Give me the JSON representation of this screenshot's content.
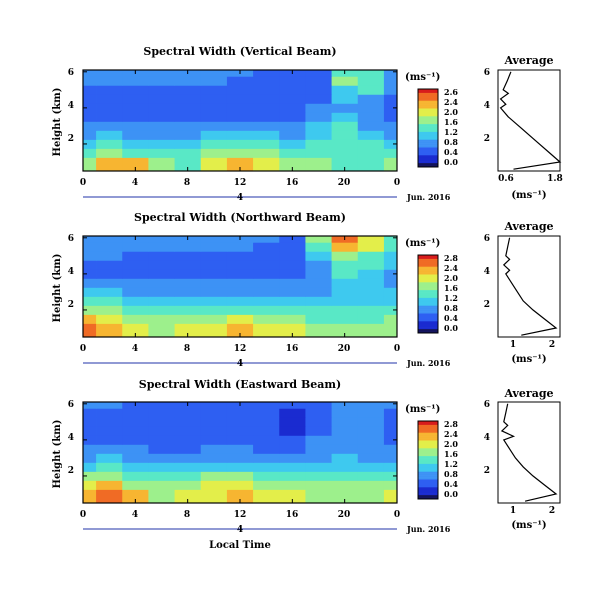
{
  "figure": {
    "xlabel": "Local Time",
    "date_label": "Jun. 2016",
    "unit_label": "(ms⁻¹)",
    "avg_xlabel": "(ms⁻¹)"
  },
  "colorscale": [
    "#12125c",
    "#1a2bd0",
    "#2e5ff2",
    "#3d92f5",
    "#3ec9ef",
    "#59e8c6",
    "#9df08c",
    "#e3ee4a",
    "#f7b531",
    "#f06b25",
    "#d81c1c"
  ],
  "panels": [
    {
      "title": "Spectral Width (Vertical Beam)",
      "ylabel": "Height (km)",
      "x_ticks": [
        "0",
        "4",
        "8",
        "12",
        "16",
        "20",
        "0"
      ],
      "y_ticks": [
        "6",
        "4",
        "2"
      ],
      "day_label": "4",
      "cbar_ticks": [
        "2.6",
        "2.4",
        "2.0",
        "1.6",
        "1.2",
        "0.8",
        "0.4",
        "0.0"
      ],
      "avg_title": "Average",
      "avg_xticks": [
        "0.6",
        "1.8"
      ],
      "avg_yticks": [
        "6",
        "4",
        "2"
      ]
    },
    {
      "title": "Spectral Width (Northward Beam)",
      "ylabel": "Height (km)",
      "x_ticks": [
        "0",
        "4",
        "8",
        "12",
        "16",
        "20",
        "0"
      ],
      "y_ticks": [
        "6",
        "4",
        "2"
      ],
      "day_label": "4",
      "cbar_ticks": [
        "2.8",
        "2.4",
        "2.0",
        "1.6",
        "1.2",
        "0.8",
        "0.4",
        "0.0"
      ],
      "avg_title": "Average",
      "avg_xticks": [
        "1",
        "2"
      ],
      "avg_yticks": [
        "6",
        "4",
        "2"
      ]
    },
    {
      "title": "Spectral Width (Eastward Beam)",
      "ylabel": "Height (km)",
      "x_ticks": [
        "0",
        "4",
        "8",
        "12",
        "16",
        "20",
        "0"
      ],
      "y_ticks": [
        "6",
        "4",
        "2"
      ],
      "day_label": "4",
      "cbar_ticks": [
        "2.8",
        "2.4",
        "2.0",
        "1.6",
        "1.2",
        "0.8",
        "0.4",
        "0.0"
      ],
      "avg_title": "Average",
      "avg_xticks": [
        "1",
        "2"
      ],
      "avg_yticks": [
        "6",
        "4",
        "2"
      ]
    }
  ],
  "chart_data": [
    {
      "type": "heatmap",
      "title": "Spectral Width (Vertical Beam)",
      "xlabel": "Local Time",
      "ylabel": "Height (km)",
      "xlim": [
        0,
        24
      ],
      "ylim": [
        0.5,
        6.1
      ],
      "clim": [
        0.0,
        2.6
      ],
      "x_ticks": [
        0,
        4,
        8,
        12,
        16,
        20,
        24
      ],
      "y_ticks": [
        2,
        4,
        6
      ],
      "colorbar_ticks": [
        0.0,
        0.4,
        0.8,
        1.2,
        1.6,
        2.0,
        2.4,
        2.6
      ],
      "heights_km": [
        1.0,
        1.5,
        2.0,
        2.5,
        3.0,
        3.5,
        4.0,
        4.5,
        5.0,
        5.5,
        6.0
      ],
      "times_h": [
        0,
        2,
        4,
        6,
        8,
        10,
        12,
        14,
        16,
        18,
        20,
        22,
        24
      ],
      "values": [
        [
          1.6,
          2.2,
          2.0,
          1.5,
          1.4,
          1.8,
          2.0,
          1.7,
          1.6,
          1.5,
          1.4,
          1.4,
          1.5
        ],
        [
          1.4,
          1.6,
          1.4,
          1.2,
          1.3,
          1.5,
          1.6,
          1.5,
          1.4,
          1.3,
          1.3,
          1.4,
          1.4
        ],
        [
          1.1,
          1.2,
          1.1,
          1.0,
          1.1,
          1.2,
          1.3,
          1.2,
          1.1,
          1.2,
          1.3,
          1.2,
          1.1
        ],
        [
          0.9,
          1.0,
          0.9,
          0.8,
          0.9,
          1.0,
          1.0,
          1.0,
          0.9,
          1.1,
          1.4,
          1.1,
          0.9
        ],
        [
          0.7,
          0.8,
          0.7,
          0.7,
          0.7,
          0.8,
          0.8,
          0.8,
          0.8,
          1.0,
          1.2,
          0.9,
          0.8
        ],
        [
          0.6,
          0.6,
          0.6,
          0.6,
          0.6,
          0.6,
          0.6,
          0.6,
          0.6,
          0.8,
          1.0,
          0.8,
          0.6
        ],
        [
          0.4,
          0.4,
          0.4,
          0.4,
          0.5,
          0.5,
          0.5,
          0.5,
          0.5,
          0.7,
          0.9,
          0.7,
          0.5
        ],
        [
          0.5,
          0.5,
          0.5,
          0.5,
          0.5,
          0.5,
          0.5,
          0.5,
          0.4,
          0.6,
          1.0,
          0.8,
          0.6
        ],
        [
          0.6,
          0.6,
          0.6,
          0.6,
          0.6,
          0.6,
          0.6,
          0.5,
          0.4,
          0.6,
          1.1,
          1.2,
          0.8
        ],
        [
          0.7,
          0.7,
          0.7,
          0.7,
          0.7,
          0.7,
          0.6,
          0.6,
          0.5,
          0.5,
          1.6,
          1.3,
          0.8
        ],
        [
          0.7,
          0.8,
          0.7,
          0.7,
          0.7,
          0.7,
          0.7,
          0.6,
          0.5,
          0.5,
          1.4,
          1.2,
          0.8
        ]
      ],
      "average_profile": {
        "height_km": [
          0.6,
          1.0,
          1.5,
          2.0,
          2.5,
          3.0,
          3.5,
          4.0,
          4.2,
          4.5,
          4.8,
          5.0,
          5.5,
          6.0
        ],
        "value": [
          0.9,
          1.8,
          1.6,
          1.4,
          1.2,
          1.0,
          0.8,
          0.65,
          0.75,
          0.65,
          0.8,
          0.7,
          0.78,
          0.85
        ],
        "xlim": [
          0.6,
          1.8
        ]
      }
    },
    {
      "type": "heatmap",
      "title": "Spectral Width (Northward Beam)",
      "xlabel": "Local Time",
      "ylabel": "Height (km)",
      "xlim": [
        0,
        24
      ],
      "ylim": [
        0.5,
        6.1
      ],
      "clim": [
        0.0,
        2.8
      ],
      "x_ticks": [
        0,
        4,
        8,
        12,
        16,
        20,
        24
      ],
      "y_ticks": [
        2,
        4,
        6
      ],
      "colorbar_ticks": [
        0.0,
        0.4,
        0.8,
        1.2,
        1.6,
        2.0,
        2.4,
        2.8
      ],
      "heights_km": [
        1.0,
        1.5,
        2.0,
        2.5,
        3.0,
        3.5,
        4.0,
        4.5,
        5.0,
        5.5,
        6.0
      ],
      "times_h": [
        0,
        2,
        4,
        6,
        8,
        10,
        12,
        14,
        16,
        18,
        20,
        22,
        24
      ],
      "values": [
        [
          2.4,
          2.2,
          1.9,
          1.8,
          1.9,
          2.0,
          2.1,
          1.9,
          2.0,
          1.7,
          1.6,
          1.7,
          1.8
        ],
        [
          2.1,
          1.9,
          1.7,
          1.6,
          1.7,
          1.8,
          1.9,
          1.7,
          1.6,
          1.5,
          1.4,
          1.5,
          1.6
        ],
        [
          1.7,
          1.6,
          1.4,
          1.3,
          1.4,
          1.5,
          1.5,
          1.4,
          1.3,
          1.3,
          1.3,
          1.3,
          1.4
        ],
        [
          1.3,
          1.3,
          1.2,
          1.1,
          1.1,
          1.2,
          1.2,
          1.1,
          1.1,
          1.1,
          1.2,
          1.1,
          1.2
        ],
        [
          1.0,
          1.0,
          0.9,
          0.9,
          0.9,
          0.9,
          0.9,
          0.9,
          0.9,
          0.9,
          1.1,
          1.0,
          1.0
        ],
        [
          0.7,
          0.8,
          0.7,
          0.7,
          0.7,
          0.7,
          0.7,
          0.7,
          0.7,
          0.9,
          1.2,
          1.1,
          0.9
        ],
        [
          0.6,
          0.6,
          0.6,
          0.6,
          0.6,
          0.6,
          0.6,
          0.6,
          0.6,
          0.8,
          1.4,
          1.2,
          0.9
        ],
        [
          0.6,
          0.6,
          0.6,
          0.6,
          0.6,
          0.6,
          0.6,
          0.6,
          0.5,
          0.8,
          1.3,
          1.3,
          1.0
        ],
        [
          0.7,
          0.7,
          0.6,
          0.6,
          0.6,
          0.6,
          0.6,
          0.6,
          0.5,
          1.0,
          1.6,
          1.5,
          1.1
        ],
        [
          0.8,
          0.8,
          0.7,
          0.7,
          0.7,
          0.7,
          0.7,
          0.6,
          0.5,
          1.4,
          2.2,
          1.9,
          1.3
        ],
        [
          0.8,
          0.8,
          0.8,
          0.8,
          0.8,
          0.8,
          0.8,
          0.7,
          0.6,
          1.8,
          2.4,
          2.0,
          1.3
        ]
      ],
      "average_profile": {
        "height_km": [
          0.6,
          1.0,
          1.5,
          2.0,
          2.5,
          3.0,
          3.5,
          4.0,
          4.2,
          4.5,
          4.8,
          5.0,
          5.5,
          6.0
        ],
        "value": [
          1.2,
          2.1,
          1.8,
          1.5,
          1.25,
          1.1,
          0.95,
          0.8,
          0.9,
          0.75,
          0.9,
          0.8,
          0.85,
          0.9
        ],
        "xlim": [
          0.6,
          2.2
        ]
      }
    },
    {
      "type": "heatmap",
      "title": "Spectral Width (Eastward Beam)",
      "xlabel": "Local Time",
      "ylabel": "Height (km)",
      "xlim": [
        0,
        24
      ],
      "ylim": [
        0.5,
        6.1
      ],
      "clim": [
        0.0,
        2.8
      ],
      "x_ticks": [
        0,
        4,
        8,
        12,
        16,
        20,
        24
      ],
      "y_ticks": [
        2,
        4,
        6
      ],
      "colorbar_ticks": [
        0.0,
        0.4,
        0.8,
        1.2,
        1.6,
        2.0,
        2.4,
        2.8
      ],
      "heights_km": [
        1.0,
        1.5,
        2.0,
        2.5,
        3.0,
        3.5,
        4.0,
        4.5,
        5.0,
        5.5,
        6.0
      ],
      "times_h": [
        0,
        2,
        4,
        6,
        8,
        10,
        12,
        14,
        16,
        18,
        20,
        22,
        24
      ],
      "values": [
        [
          2.3,
          2.4,
          2.1,
          1.8,
          1.9,
          2.0,
          2.1,
          2.0,
          2.0,
          1.8,
          1.7,
          1.8,
          1.9
        ],
        [
          2.0,
          2.1,
          1.8,
          1.6,
          1.7,
          1.9,
          2.0,
          1.8,
          1.7,
          1.6,
          1.8,
          1.7,
          1.7
        ],
        [
          1.6,
          1.7,
          1.5,
          1.3,
          1.4,
          1.6,
          1.6,
          1.5,
          1.4,
          1.4,
          1.5,
          1.4,
          1.4
        ],
        [
          1.2,
          1.3,
          1.2,
          1.0,
          1.1,
          1.2,
          1.2,
          1.1,
          1.1,
          1.1,
          1.2,
          1.1,
          1.1
        ],
        [
          0.9,
          1.0,
          0.9,
          0.8,
          0.8,
          0.9,
          0.9,
          0.9,
          0.8,
          0.9,
          1.0,
          0.9,
          0.9
        ],
        [
          0.7,
          0.7,
          0.7,
          0.6,
          0.6,
          0.7,
          0.7,
          0.6,
          0.6,
          0.8,
          0.9,
          0.8,
          0.7
        ],
        [
          0.5,
          0.5,
          0.5,
          0.5,
          0.5,
          0.5,
          0.5,
          0.5,
          0.5,
          0.7,
          0.8,
          0.7,
          0.6
        ],
        [
          0.5,
          0.5,
          0.5,
          0.5,
          0.5,
          0.5,
          0.5,
          0.5,
          0.4,
          0.6,
          0.8,
          0.7,
          0.6
        ],
        [
          0.6,
          0.6,
          0.6,
          0.6,
          0.6,
          0.6,
          0.6,
          0.5,
          0.4,
          0.6,
          0.9,
          0.8,
          0.6
        ],
        [
          0.6,
          0.6,
          0.6,
          0.6,
          0.6,
          0.6,
          0.6,
          0.5,
          0.4,
          0.5,
          0.8,
          0.7,
          0.6
        ],
        [
          0.7,
          0.7,
          0.6,
          0.6,
          0.6,
          0.6,
          0.6,
          0.6,
          0.5,
          0.5,
          0.7,
          0.7,
          0.7
        ]
      ],
      "average_profile": {
        "height_km": [
          0.6,
          1.0,
          1.5,
          2.0,
          2.5,
          3.0,
          3.5,
          4.0,
          4.2,
          4.5,
          4.8,
          5.0,
          5.5,
          6.0
        ],
        "value": [
          1.3,
          2.1,
          1.8,
          1.5,
          1.25,
          1.05,
          0.9,
          0.75,
          1.0,
          0.7,
          0.85,
          0.75,
          0.8,
          0.85
        ],
        "xlim": [
          0.6,
          2.2
        ]
      }
    }
  ]
}
